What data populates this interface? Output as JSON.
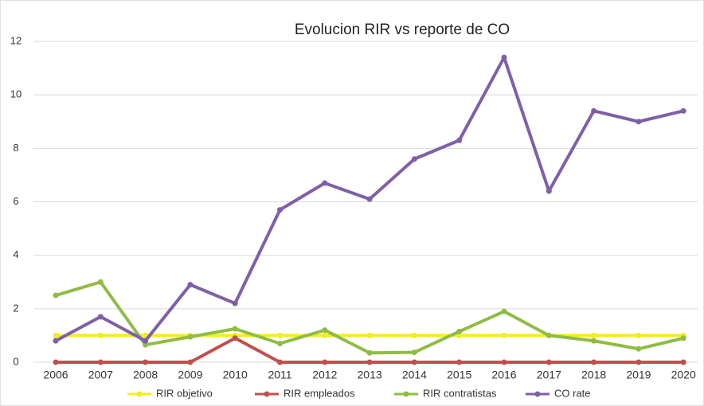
{
  "chart_data": {
    "type": "line",
    "title": "Evolucion  RIR vs reporte de CO",
    "categories": [
      "2006",
      "2007",
      "2008",
      "2009",
      "2010",
      "2011",
      "2012",
      "2013",
      "2014",
      "2015",
      "2016",
      "2017",
      "2018",
      "2019",
      "2020"
    ],
    "series": [
      {
        "name": "RIR objetivo",
        "color": "#f2ee1c",
        "values": [
          1,
          1,
          1,
          1,
          1,
          1,
          1,
          1,
          1,
          1,
          1,
          1,
          1,
          1,
          1
        ]
      },
      {
        "name": "RIR empleados",
        "color": "#c0504d",
        "values": [
          0,
          0,
          0,
          0,
          0.9,
          0,
          0,
          0,
          0,
          0,
          0,
          0,
          0,
          0,
          0
        ]
      },
      {
        "name": "RIR contratistas",
        "color": "#8fbc45",
        "values": [
          2.5,
          3.0,
          0.65,
          0.95,
          1.25,
          0.7,
          1.2,
          0.35,
          0.37,
          1.15,
          1.9,
          1.0,
          0.8,
          0.5,
          0.9
        ]
      },
      {
        "name": "CO rate",
        "color": "#7f5fa8",
        "values": [
          0.8,
          1.7,
          0.8,
          2.9,
          2.2,
          5.7,
          6.7,
          6.1,
          7.6,
          8.3,
          11.4,
          6.4,
          9.4,
          9.0,
          9.4
        ]
      }
    ],
    "ylim": [
      0,
      12
    ],
    "yticks": [
      0,
      2,
      4,
      6,
      8,
      10,
      12
    ],
    "grid": true,
    "legend": "bottom"
  }
}
